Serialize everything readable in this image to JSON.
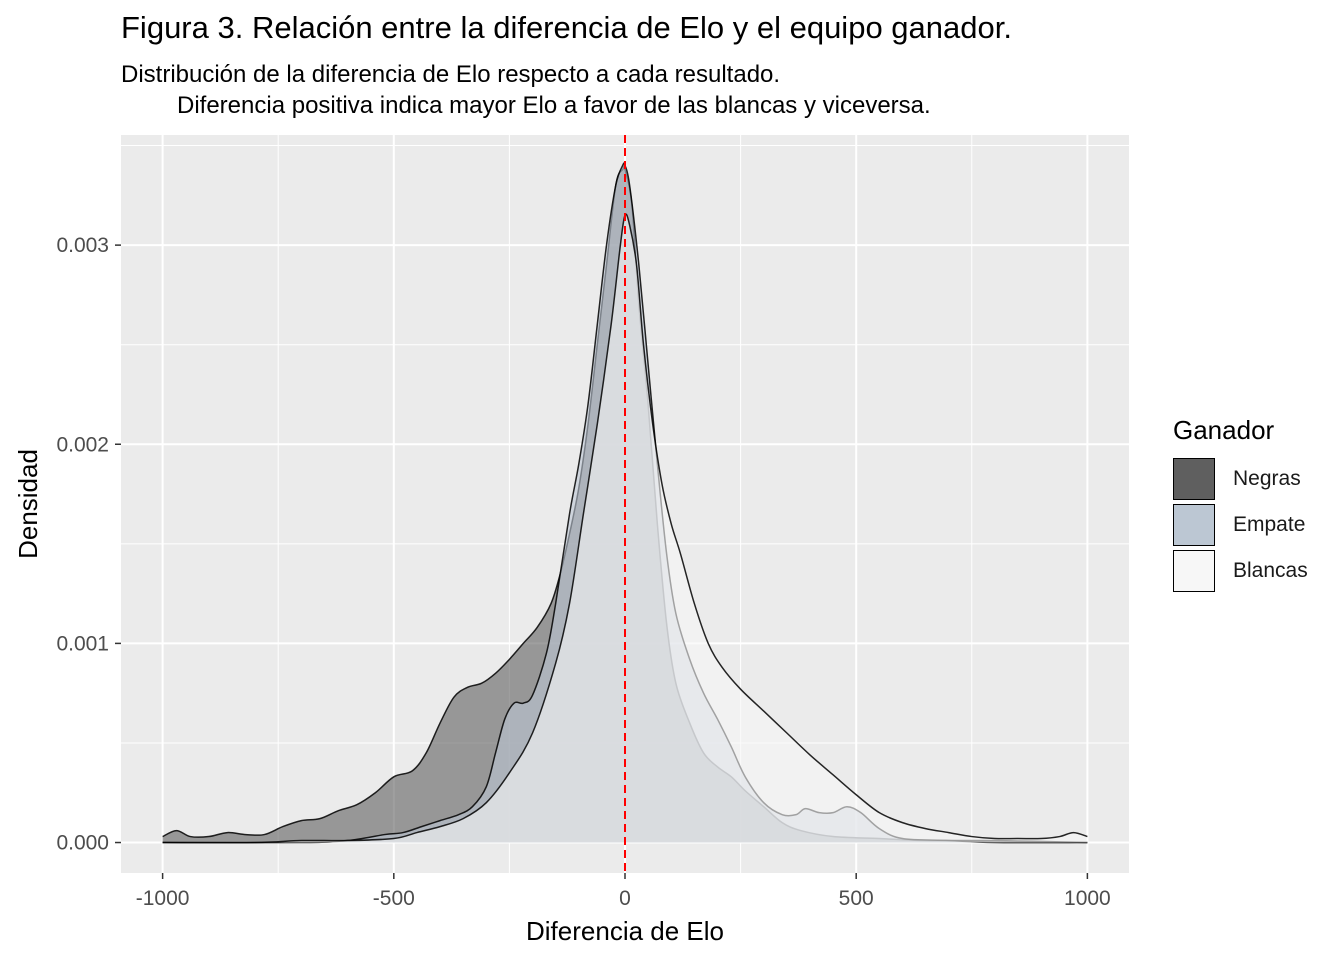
{
  "title": "Figura 3. Relación entre la diferencia de Elo y el equipo ganador.",
  "subtitle_line1": "Distribución de la diferencia de Elo respecto a cada resultado.",
  "subtitle_line2": "Diferencia positiva indica mayor Elo a favor de las blancas y viceversa.",
  "legend": {
    "title": "Ganador",
    "items": [
      {
        "label": "Negras",
        "color": "#5f5f5f"
      },
      {
        "label": "Empate",
        "color": "#bcc7d3"
      },
      {
        "label": "Blancas",
        "color": "#f7f7f7"
      }
    ]
  },
  "chart_data": {
    "type": "area",
    "xlabel": "Diferencia de Elo",
    "ylabel": "Densidad",
    "xlim": [
      -1000,
      1000
    ],
    "ylim": [
      0,
      0.0034
    ],
    "xticks": [
      -1000,
      -500,
      0,
      500,
      1000
    ],
    "xtick_labels": [
      "-1000",
      "-500",
      "0",
      "500",
      "1000"
    ],
    "yticks": [
      0,
      0.001,
      0.002,
      0.003
    ],
    "ytick_labels": [
      "0.000",
      "0.001",
      "0.002",
      "0.003"
    ],
    "grid": true,
    "reference_line": {
      "x": 0,
      "color": "#ff0000",
      "style": "dashed"
    },
    "legend_position": "right",
    "series": [
      {
        "name": "Negras",
        "fill": "#5f5f5f",
        "points": [
          [
            -1000,
            3e-05
          ],
          [
            -970,
            6e-05
          ],
          [
            -940,
            3e-05
          ],
          [
            -900,
            3e-05
          ],
          [
            -860,
            5e-05
          ],
          [
            -820,
            4e-05
          ],
          [
            -780,
            4e-05
          ],
          [
            -740,
            8e-05
          ],
          [
            -700,
            0.00011
          ],
          [
            -660,
            0.00012
          ],
          [
            -620,
            0.00016
          ],
          [
            -580,
            0.00019
          ],
          [
            -540,
            0.00025
          ],
          [
            -500,
            0.00033
          ],
          [
            -460,
            0.00036
          ],
          [
            -430,
            0.00045
          ],
          [
            -400,
            0.0006
          ],
          [
            -370,
            0.00073
          ],
          [
            -340,
            0.00078
          ],
          [
            -310,
            0.0008
          ],
          [
            -280,
            0.00085
          ],
          [
            -250,
            0.00092
          ],
          [
            -220,
            0.001
          ],
          [
            -190,
            0.00108
          ],
          [
            -160,
            0.0012
          ],
          [
            -140,
            0.00135
          ],
          [
            -120,
            0.00155
          ],
          [
            -100,
            0.00178
          ],
          [
            -80,
            0.0021
          ],
          [
            -60,
            0.0025
          ],
          [
            -40,
            0.0029
          ],
          [
            -20,
            0.0033
          ],
          [
            -5,
            0.00338
          ],
          [
            0,
            0.00338
          ],
          [
            15,
            0.0032
          ],
          [
            30,
            0.0027
          ],
          [
            50,
            0.0022
          ],
          [
            70,
            0.0016
          ],
          [
            90,
            0.0011
          ],
          [
            110,
            0.0008
          ],
          [
            140,
            0.0006
          ],
          [
            170,
            0.00045
          ],
          [
            200,
            0.00038
          ],
          [
            230,
            0.00033
          ],
          [
            260,
            0.00026
          ],
          [
            300,
            0.00018
          ],
          [
            340,
            0.0001
          ],
          [
            380,
            6e-05
          ],
          [
            450,
            3e-05
          ],
          [
            550,
            2e-05
          ],
          [
            650,
            1e-05
          ],
          [
            800,
            1e-05
          ],
          [
            1000,
            0
          ]
        ]
      },
      {
        "name": "Empate",
        "fill": "#bcc7d3",
        "points": [
          [
            -1000,
            0
          ],
          [
            -700,
            0
          ],
          [
            -600,
            1e-05
          ],
          [
            -520,
            4e-05
          ],
          [
            -480,
            5e-05
          ],
          [
            -440,
            8e-05
          ],
          [
            -400,
            0.00011
          ],
          [
            -360,
            0.00014
          ],
          [
            -330,
            0.00018
          ],
          [
            -300,
            0.00028
          ],
          [
            -280,
            0.00045
          ],
          [
            -260,
            0.00062
          ],
          [
            -240,
            0.0007
          ],
          [
            -220,
            0.0007
          ],
          [
            -200,
            0.00074
          ],
          [
            -170,
            0.00095
          ],
          [
            -150,
            0.0012
          ],
          [
            -120,
            0.00165
          ],
          [
            -100,
            0.0019
          ],
          [
            -80,
            0.0022
          ],
          [
            -60,
            0.0026
          ],
          [
            -40,
            0.003
          ],
          [
            -20,
            0.0033
          ],
          [
            -5,
            0.0034
          ],
          [
            0,
            0.0034
          ],
          [
            10,
            0.0033
          ],
          [
            30,
            0.0029
          ],
          [
            50,
            0.0024
          ],
          [
            70,
            0.0019
          ],
          [
            90,
            0.00145
          ],
          [
            110,
            0.00115
          ],
          [
            140,
            0.00092
          ],
          [
            170,
            0.00075
          ],
          [
            200,
            0.00062
          ],
          [
            230,
            0.00048
          ],
          [
            260,
            0.00033
          ],
          [
            300,
            0.0002
          ],
          [
            340,
            0.00014
          ],
          [
            370,
            0.00014
          ],
          [
            390,
            0.00017
          ],
          [
            420,
            0.00015
          ],
          [
            450,
            0.00015
          ],
          [
            480,
            0.00018
          ],
          [
            510,
            0.00015
          ],
          [
            550,
            7e-05
          ],
          [
            600,
            2e-05
          ],
          [
            700,
            1e-05
          ],
          [
            800,
            0
          ],
          [
            1000,
            0
          ]
        ]
      },
      {
        "name": "Blancas",
        "fill": "#f7f7f7",
        "points": [
          [
            -1000,
            0
          ],
          [
            -800,
            0
          ],
          [
            -700,
            1e-05
          ],
          [
            -600,
            1e-05
          ],
          [
            -500,
            2e-05
          ],
          [
            -450,
            5e-05
          ],
          [
            -400,
            8e-05
          ],
          [
            -350,
            0.00012
          ],
          [
            -300,
            0.0002
          ],
          [
            -250,
            0.00035
          ],
          [
            -200,
            0.00055
          ],
          [
            -150,
            0.0009
          ],
          [
            -120,
            0.0012
          ],
          [
            -90,
            0.00165
          ],
          [
            -60,
            0.0021
          ],
          [
            -30,
            0.0026
          ],
          [
            -10,
            0.003
          ],
          [
            0,
            0.00315
          ],
          [
            10,
            0.0031
          ],
          [
            25,
            0.0029
          ],
          [
            40,
            0.0025
          ],
          [
            60,
            0.0021
          ],
          [
            80,
            0.0018
          ],
          [
            100,
            0.0016
          ],
          [
            120,
            0.00145
          ],
          [
            150,
            0.0012
          ],
          [
            180,
            0.001
          ],
          [
            210,
            0.00088
          ],
          [
            250,
            0.00077
          ],
          [
            300,
            0.00066
          ],
          [
            350,
            0.00055
          ],
          [
            400,
            0.00044
          ],
          [
            450,
            0.00034
          ],
          [
            500,
            0.00024
          ],
          [
            550,
            0.00015
          ],
          [
            600,
            0.0001
          ],
          [
            650,
            7e-05
          ],
          [
            700,
            5e-05
          ],
          [
            750,
            3e-05
          ],
          [
            800,
            2e-05
          ],
          [
            850,
            2e-05
          ],
          [
            900,
            2e-05
          ],
          [
            940,
            3e-05
          ],
          [
            970,
            5e-05
          ],
          [
            1000,
            3e-05
          ]
        ]
      }
    ]
  }
}
